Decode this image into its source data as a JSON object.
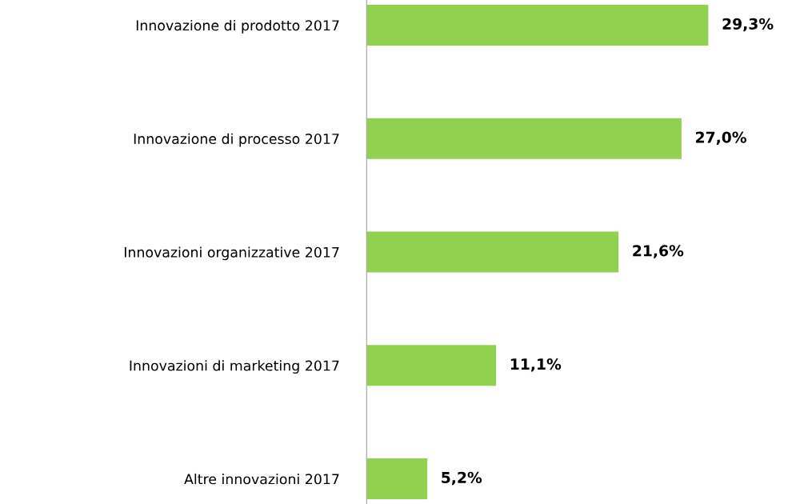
{
  "chart_data": {
    "type": "bar",
    "orientation": "horizontal",
    "categories": [
      "Innovazione di prodotto 2017",
      "Innovazione di processo 2017",
      "Innovazioni organizzative 2017",
      "Innovazioni di marketing 2017",
      "Altre innovazioni 2017"
    ],
    "values": [
      29.3,
      27.0,
      21.6,
      11.1,
      5.2
    ],
    "value_labels": [
      "29,3%",
      "27,0%",
      "21,6%",
      "11,1%",
      "5,2%"
    ],
    "color": "#92d050",
    "grid": false,
    "legend": false
  }
}
